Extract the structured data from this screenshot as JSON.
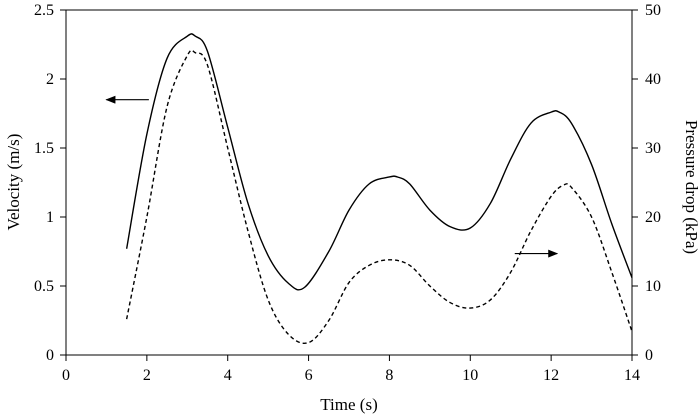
{
  "chart_data": {
    "type": "line",
    "xlabel": "Time (s)",
    "ylabel": "Velocity (m/s)",
    "y2label": "Pressure drop (kPa)",
    "xlim": [
      0,
      14
    ],
    "ylim": [
      0,
      2.5
    ],
    "y2lim": [
      0,
      50
    ],
    "xticks": [
      "0",
      "2",
      "4",
      "6",
      "8",
      "10",
      "12",
      "14"
    ],
    "yticks": [
      "0",
      "0.5",
      "1",
      "1.5",
      "2",
      "2.5"
    ],
    "y2ticks": [
      "0",
      "10",
      "20",
      "30",
      "40",
      "50"
    ],
    "grid": false,
    "series": [
      {
        "axis": "left",
        "style": "solid",
        "color": "#000000",
        "x": [
          1.5,
          2.0,
          2.5,
          3.0,
          3.2,
          3.5,
          4.0,
          4.5,
          5.0,
          5.5,
          5.9,
          6.5,
          7.0,
          7.5,
          8.0,
          8.2,
          8.5,
          9.0,
          9.5,
          10.0,
          10.5,
          11.0,
          11.5,
          12.0,
          12.2,
          12.5,
          13.0,
          13.5,
          14.0
        ],
        "y": [
          0.77,
          1.6,
          2.15,
          2.31,
          2.31,
          2.2,
          1.65,
          1.1,
          0.72,
          0.52,
          0.49,
          0.75,
          1.05,
          1.24,
          1.29,
          1.29,
          1.24,
          1.05,
          0.93,
          0.92,
          1.1,
          1.42,
          1.68,
          1.76,
          1.76,
          1.68,
          1.38,
          0.95,
          0.56
        ]
      },
      {
        "axis": "right",
        "style": "dashed",
        "color": "#000000",
        "x": [
          1.5,
          2.0,
          2.5,
          3.0,
          3.2,
          3.5,
          4.0,
          4.5,
          5.0,
          5.5,
          6.0,
          6.5,
          7.0,
          7.5,
          8.0,
          8.5,
          9.0,
          9.5,
          10.0,
          10.5,
          11.0,
          11.5,
          12.0,
          12.3,
          12.5,
          13.0,
          13.5,
          14.0
        ],
        "y": [
          5.2,
          20.0,
          36.0,
          43.4,
          43.8,
          42.0,
          30.0,
          18.0,
          8.0,
          3.0,
          1.8,
          5.0,
          10.5,
          13.0,
          13.8,
          13.0,
          10.0,
          7.6,
          6.8,
          8.0,
          12.0,
          18.0,
          23.0,
          24.6,
          24.3,
          20.0,
          12.0,
          3.4
        ]
      }
    ],
    "annotations": [
      {
        "type": "arrow",
        "points_to": "left-axis",
        "x_from": 2.05,
        "x_to": 1.0,
        "y": 1.85,
        "axis": "left"
      },
      {
        "type": "arrow",
        "points_to": "right-axis",
        "x_from": 11.1,
        "x_to": 12.15,
        "y": 14.7,
        "axis": "right"
      }
    ]
  }
}
